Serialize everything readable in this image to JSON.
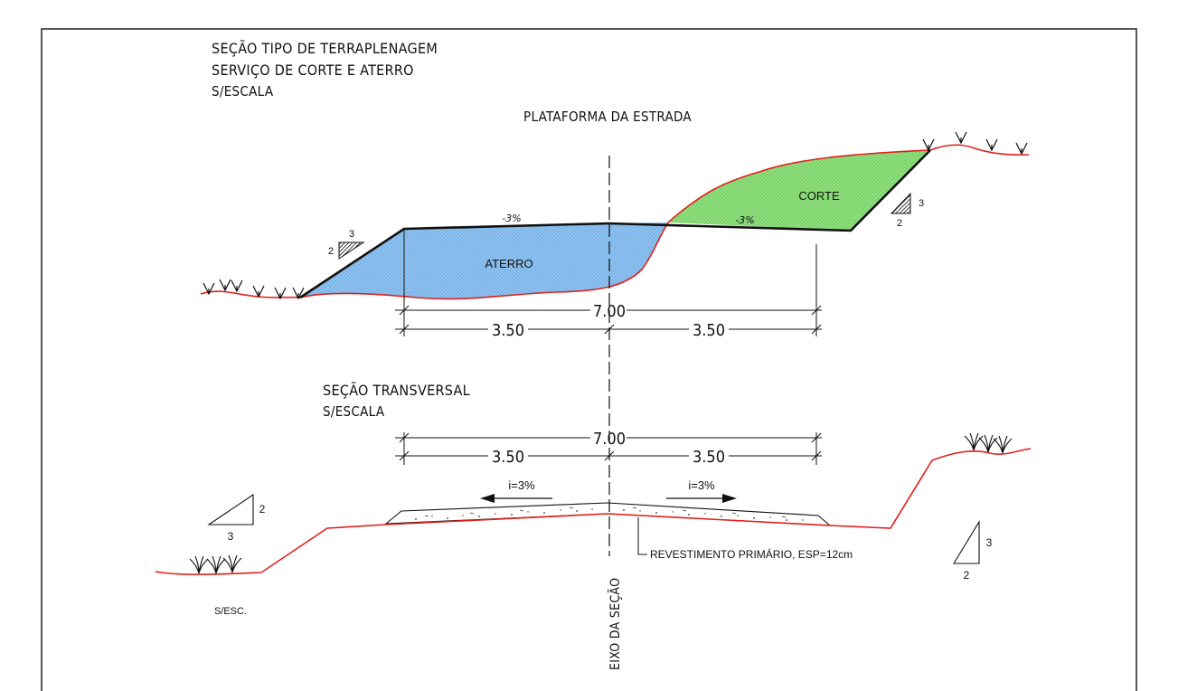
{
  "titles": {
    "main_line1": "SEÇÃO TIPO DE TERRAPLENAGEM",
    "main_line2": "SERVIÇO DE CORTE E ATERRO",
    "main_scale": "S/ESCALA",
    "platform": "PLATAFORMA DA ESTRADA",
    "transversal": "SEÇÃO TRANSVERSAL",
    "transversal_scale": "S/ESCALA"
  },
  "upper_section": {
    "fill_label": "ATERRO",
    "cut_label": "CORTE",
    "slope_left": "-3%",
    "slope_right": "-3%",
    "fill_slope": {
      "rise": "3",
      "run": "2"
    },
    "cut_slope": {
      "rise": "3",
      "run": "2"
    },
    "dim_total": "7.00",
    "dim_left": "3.50",
    "dim_right": "3.50"
  },
  "lower_section": {
    "dim_total": "7.00",
    "dim_left": "3.50",
    "dim_right": "3.50",
    "grade_left": "i=3%",
    "grade_right": "i=3%",
    "surface_note": "REVESTIMENTO PRIMÁRIO, ESP=12cm",
    "left_slope": {
      "rise": "2",
      "run": "3"
    },
    "right_slope": {
      "rise": "3",
      "run": "2"
    },
    "note_scale": "S/ESC."
  },
  "axis_label": "EIXO DA SEÇÃO",
  "colors": {
    "aterro_fill": "#8ec3f0",
    "corte_fill": "#8fe07e",
    "terrain_line": "#e0201c",
    "line": "#111111"
  }
}
